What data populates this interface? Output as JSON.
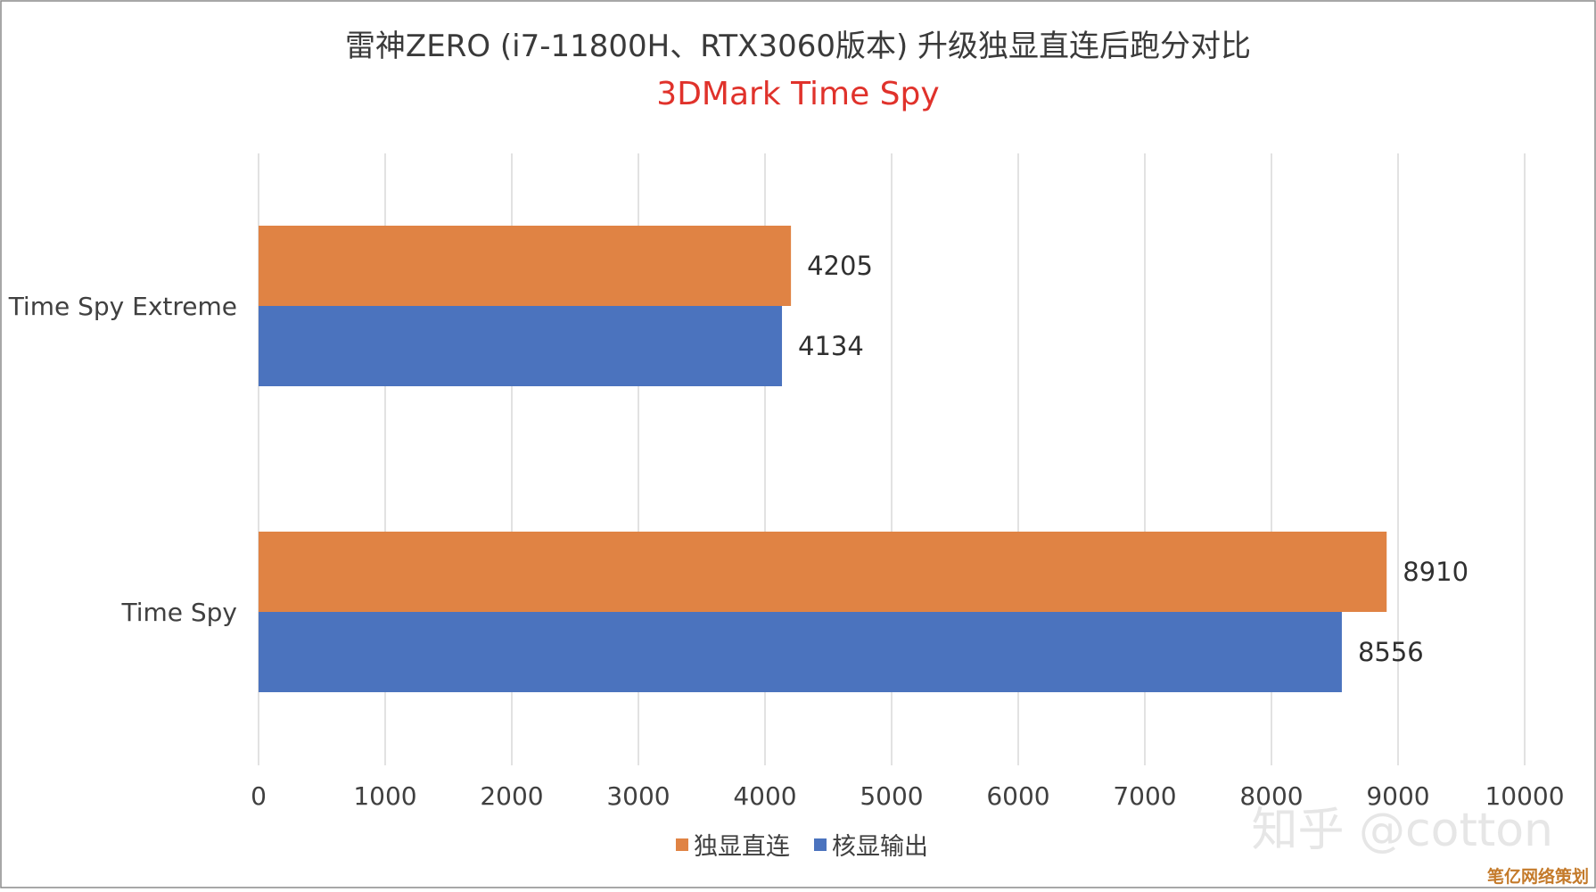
{
  "chart_data": {
    "type": "bar",
    "orientation": "horizontal",
    "title": "雷神ZERO (i7-11800H、RTX3060版本) 升级独显直连后跑分对比",
    "subtitle": "3DMark Time Spy",
    "subtitle_color": "#e0322b",
    "categories": [
      "Time Spy Extreme",
      "Time Spy"
    ],
    "series": [
      {
        "name": "独显直连",
        "color": "#e08344",
        "values": [
          4205,
          8910
        ]
      },
      {
        "name": "核显输出",
        "color": "#4b73be",
        "values": [
          4134,
          8556
        ]
      }
    ],
    "xlim": [
      0,
      10000
    ],
    "x_ticks": [
      "0",
      "1000",
      "2000",
      "3000",
      "4000",
      "5000",
      "6000",
      "7000",
      "8000",
      "9000",
      "10000"
    ],
    "grid": "vertical",
    "legend": "bottom-center",
    "data_labels": true
  },
  "watermark": {
    "text": "知乎 @cotton",
    "corner_text": "笔亿网络策划",
    "corner_color": "#c47a2a"
  }
}
